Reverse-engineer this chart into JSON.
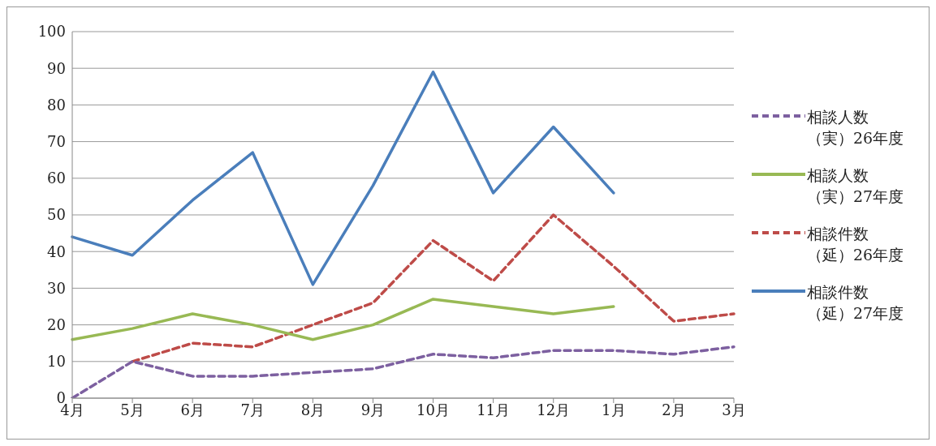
{
  "chart_data": {
    "type": "line",
    "categories": [
      "4月",
      "5月",
      "6月",
      "7月",
      "8月",
      "9月",
      "10月",
      "11月",
      "12月",
      "1月",
      "2月",
      "3月"
    ],
    "series": [
      {
        "name": "相談件数（延）27年度",
        "color": "#4a7ebb",
        "line_style": "solid",
        "values": [
          44,
          39,
          54,
          67,
          31,
          58,
          89,
          56,
          74,
          56,
          null,
          null
        ]
      },
      {
        "name": "相談件数（延）26年度",
        "color": "#be4b48",
        "line_style": "dashed",
        "values": [
          null,
          10,
          15,
          14,
          20,
          26,
          43,
          32,
          50,
          36,
          21,
          23
        ]
      },
      {
        "name": "相談人数（実）27年度",
        "color": "#98b954",
        "line_style": "solid",
        "values": [
          16,
          19,
          23,
          20,
          16,
          20,
          27,
          25,
          23,
          25,
          null,
          null
        ]
      },
      {
        "name": "相談人数（実）26年度",
        "color": "#7d60a0",
        "line_style": "dashed",
        "values": [
          0,
          10,
          6,
          6,
          7,
          8,
          12,
          11,
          13,
          13,
          12,
          14
        ]
      }
    ],
    "ylim": [
      0,
      100
    ],
    "yticks": [
      0,
      10,
      20,
      30,
      40,
      50,
      60,
      70,
      80,
      90,
      100
    ],
    "grid": "y",
    "legend": "right",
    "marker": "none"
  }
}
